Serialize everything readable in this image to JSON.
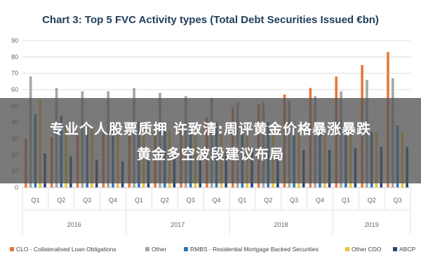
{
  "chart_data": {
    "type": "bar",
    "title": "Chart 3: Top 5 FVC Activity types (Total Debt Securities Issued €bn)",
    "xlabel": "",
    "ylabel": "",
    "ylim": [
      0,
      90
    ],
    "yticks": [
      0,
      10,
      20,
      30,
      40,
      50,
      60,
      70,
      80,
      90
    ],
    "grid": true,
    "legend": "bottom",
    "categories": [
      "Q1",
      "Q2",
      "Q3",
      "Q4",
      "Q1",
      "Q2",
      "Q3",
      "Q4",
      "Q1",
      "Q2",
      "Q3",
      "Q4",
      "Q1",
      "Q2",
      "Q3"
    ],
    "groups": [
      {
        "label": "2016",
        "span": 4
      },
      {
        "label": "2017",
        "span": 4
      },
      {
        "label": "2018",
        "span": 4
      },
      {
        "label": "2019",
        "span": 3
      }
    ],
    "series": [
      {
        "name": "CLO - Collateralised Loan Obligations",
        "color": "#e8773a",
        "values": [
          30,
          31,
          32,
          34,
          35,
          37,
          39,
          43,
          49,
          51,
          57,
          61,
          68,
          75,
          83
        ]
      },
      {
        "name": "Other",
        "color": "#a5a5a5",
        "values": [
          68,
          61,
          59,
          59,
          61,
          58,
          56,
          55,
          52,
          52,
          53,
          56,
          59,
          66,
          67
        ]
      },
      {
        "name": "RMBS - Residential Mortgage Backed Securities",
        "color": "#2e75b6",
        "values": [
          45,
          44,
          40,
          40,
          40,
          39,
          39,
          40,
          40,
          40,
          39,
          38,
          36,
          34,
          38
        ]
      },
      {
        "name": "Other CDO",
        "color": "#f2c12e",
        "values": [
          54,
          38,
          36,
          36,
          36,
          35,
          33,
          33,
          33,
          34,
          34,
          34,
          34,
          34,
          34
        ]
      },
      {
        "name": "ABCP",
        "color": "#264478",
        "values": [
          21,
          19,
          17,
          16,
          17,
          20,
          20,
          22,
          22,
          22,
          23,
          23,
          24,
          25,
          25
        ]
      }
    ]
  },
  "overlay": {
    "line1": "专业个人股票质押 许致清:周评黄金价格暴涨暴跌",
    "line2": "黄金多空波段建议布局"
  }
}
